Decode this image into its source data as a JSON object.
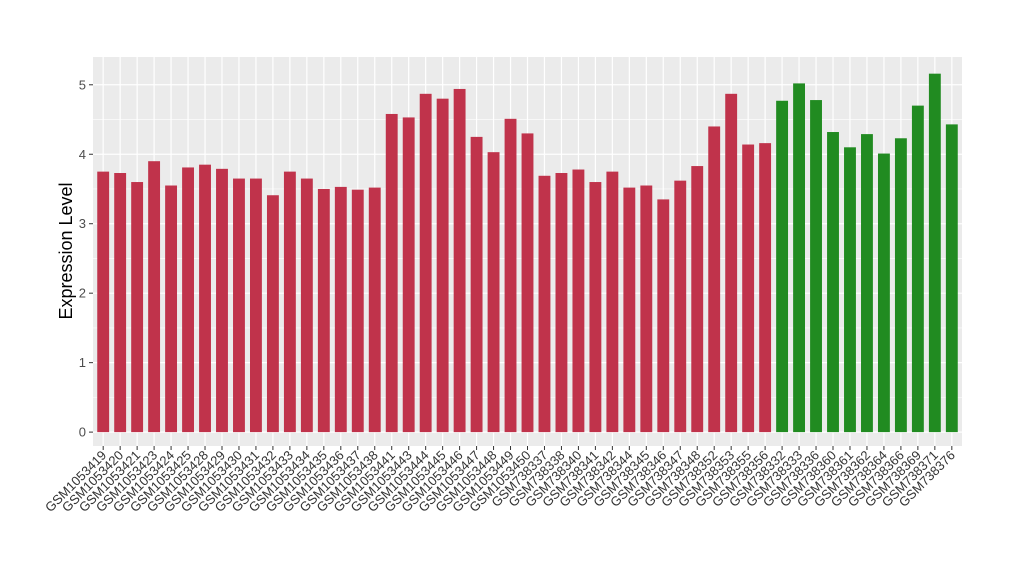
{
  "chart_data": {
    "type": "bar",
    "title": "",
    "xlabel": "",
    "ylabel": "Expression Level",
    "ylim": [
      -0.2,
      5.4
    ],
    "yticks": [
      0,
      1,
      2,
      3,
      4,
      5
    ],
    "grid": true,
    "legend": "none",
    "colors": {
      "group1": "#c0334b",
      "group2": "#218b21",
      "panel": "#ebebeb",
      "gridline": "#ffffff"
    },
    "categories": [
      "GSM1053419",
      "GSM1053420",
      "GSM1053421",
      "GSM1053423",
      "GSM1053424",
      "GSM1053425",
      "GSM1053428",
      "GSM1053429",
      "GSM1053430",
      "GSM1053431",
      "GSM1053432",
      "GSM1053433",
      "GSM1053434",
      "GSM1053435",
      "GSM1053436",
      "GSM1053437",
      "GSM1053438",
      "GSM1053441",
      "GSM1053443",
      "GSM1053444",
      "GSM1053445",
      "GSM1053446",
      "GSM1053447",
      "GSM1053448",
      "GSM1053449",
      "GSM1053450",
      "GSM738337",
      "GSM738338",
      "GSM738340",
      "GSM738341",
      "GSM738342",
      "GSM738344",
      "GSM738345",
      "GSM738346",
      "GSM738347",
      "GSM738348",
      "GSM738352",
      "GSM738353",
      "GSM738355",
      "GSM738356",
      "GSM738332",
      "GSM738333",
      "GSM738336",
      "GSM738360",
      "GSM738361",
      "GSM738362",
      "GSM738364",
      "GSM738366",
      "GSM738369",
      "GSM738371",
      "GSM738376"
    ],
    "values": [
      3.75,
      3.73,
      3.6,
      3.9,
      3.55,
      3.81,
      3.85,
      3.79,
      3.65,
      3.65,
      3.41,
      3.75,
      3.65,
      3.5,
      3.53,
      3.49,
      3.52,
      4.58,
      4.53,
      4.87,
      4.8,
      4.94,
      4.25,
      4.03,
      4.51,
      4.3,
      3.69,
      3.73,
      3.78,
      3.6,
      3.75,
      3.52,
      3.55,
      3.35,
      3.62,
      3.83,
      4.4,
      4.87,
      4.14,
      4.16,
      4.77,
      5.02,
      4.78,
      4.32,
      4.1,
      4.29,
      4.01,
      4.23,
      4.7,
      5.16,
      4.43
    ],
    "groups": [
      1,
      1,
      1,
      1,
      1,
      1,
      1,
      1,
      1,
      1,
      1,
      1,
      1,
      1,
      1,
      1,
      1,
      1,
      1,
      1,
      1,
      1,
      1,
      1,
      1,
      1,
      1,
      1,
      1,
      1,
      1,
      1,
      1,
      1,
      1,
      1,
      1,
      1,
      1,
      1,
      2,
      2,
      2,
      2,
      2,
      2,
      2,
      2,
      2,
      2,
      2
    ]
  }
}
